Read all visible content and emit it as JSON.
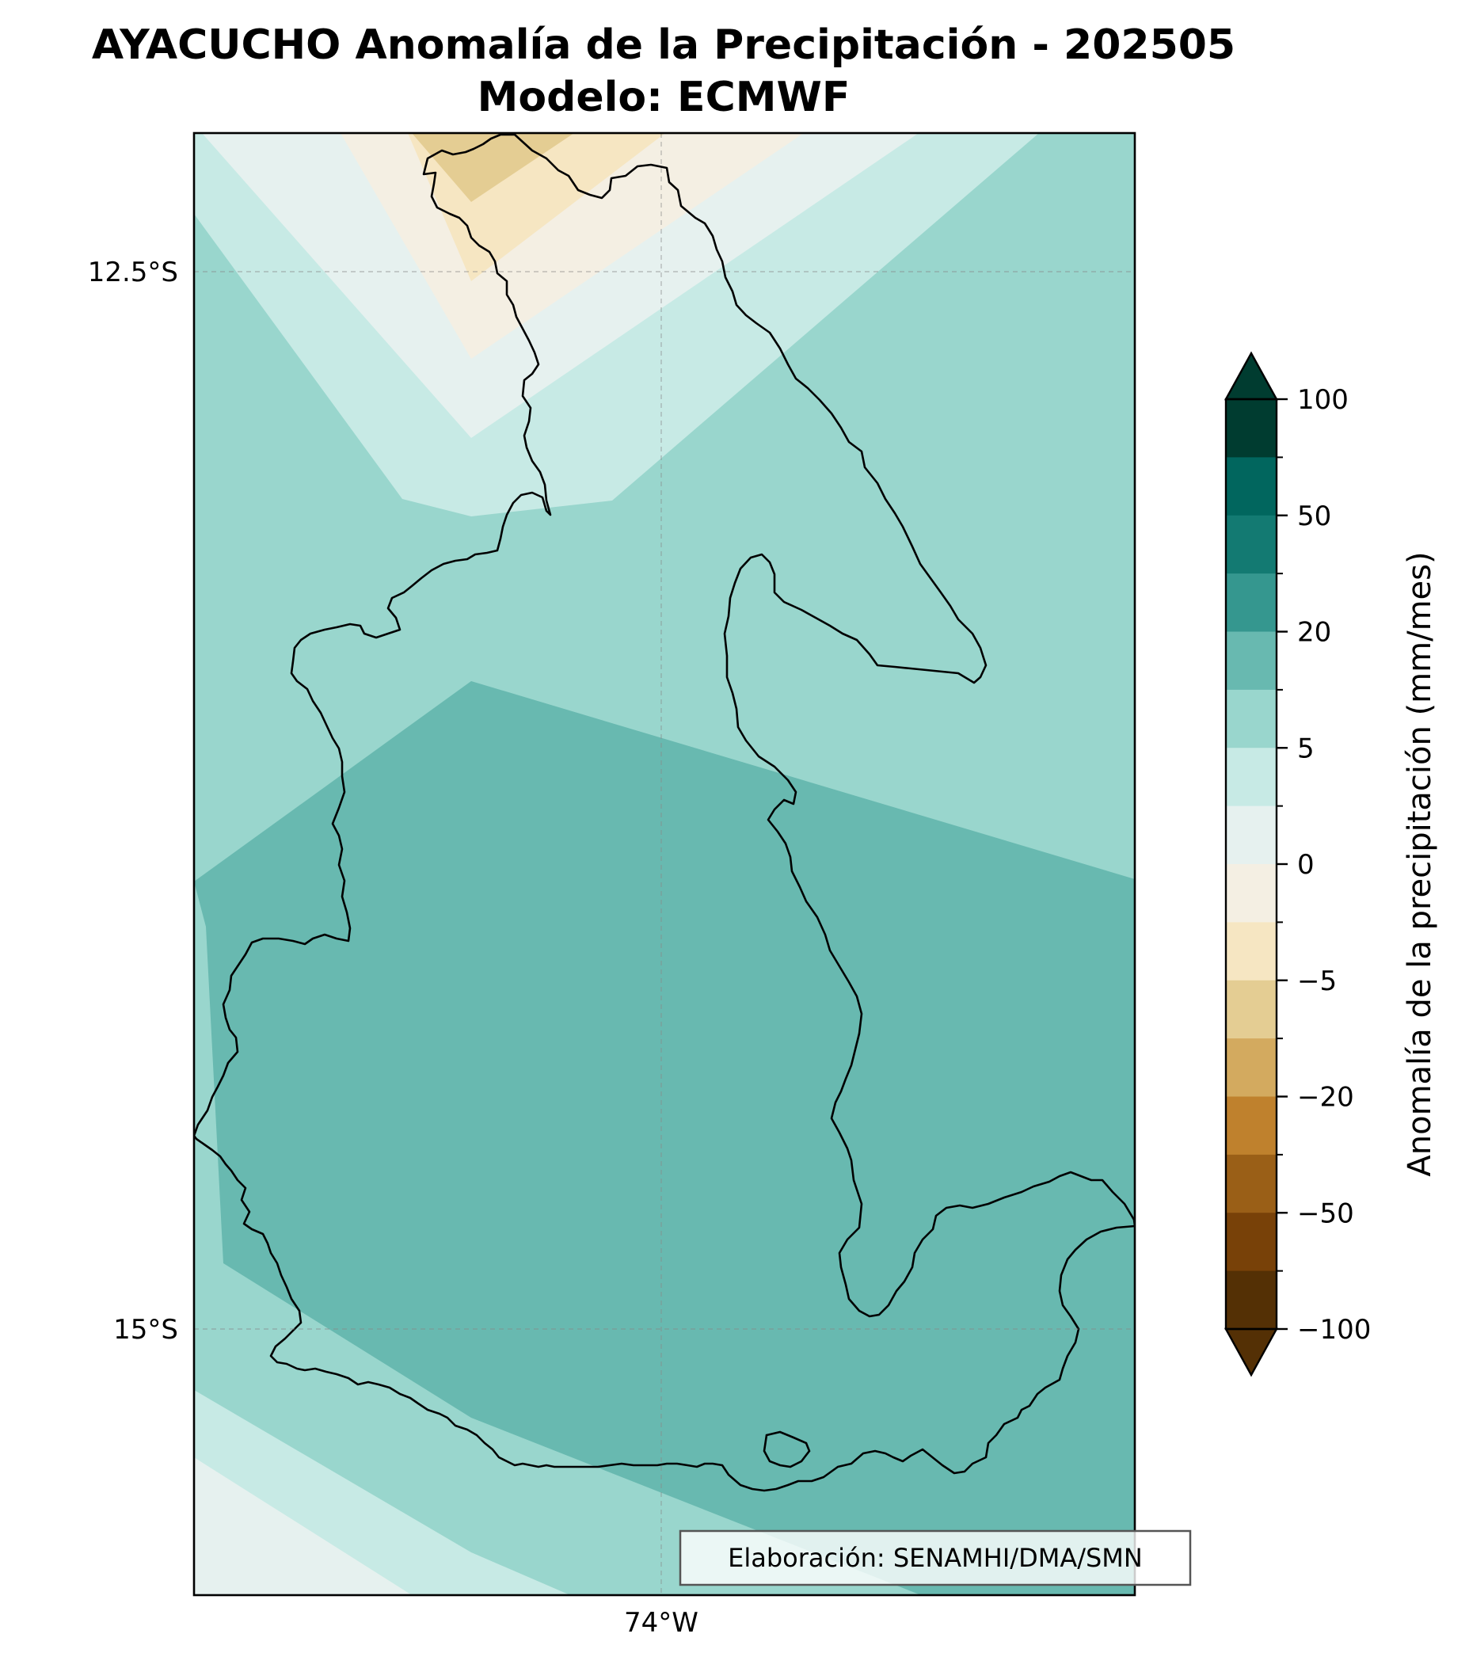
{
  "title": {
    "line1": "AYACUCHO Anomalía de la Precipitación - 202505",
    "line2": "Modelo: ECMWF"
  },
  "map": {
    "lat_labels": [
      "12.5°S",
      "15°S"
    ],
    "lon_labels": [
      "74°W"
    ],
    "gridlines": true,
    "credit": "Elaboración: SENAMHI/DMA/SMN"
  },
  "colorbar": {
    "label": "Anomalía de la precipitación (mm/mes)",
    "tick_labels": [
      "100",
      "50",
      "20",
      "5",
      "0",
      "−5",
      "−20",
      "−50",
      "−100"
    ],
    "colors": [
      "#003c30",
      "#01665e",
      "#137a72",
      "#35978f",
      "#68b9b0",
      "#99d6cd",
      "#c7eae5",
      "#e6f1ef",
      "#f4efe3",
      "#f6e6c2",
      "#e4cd93",
      "#d3aa5f",
      "#bf812d",
      "#9a5f17",
      "#784108",
      "#543005"
    ],
    "extend": "both"
  }
}
